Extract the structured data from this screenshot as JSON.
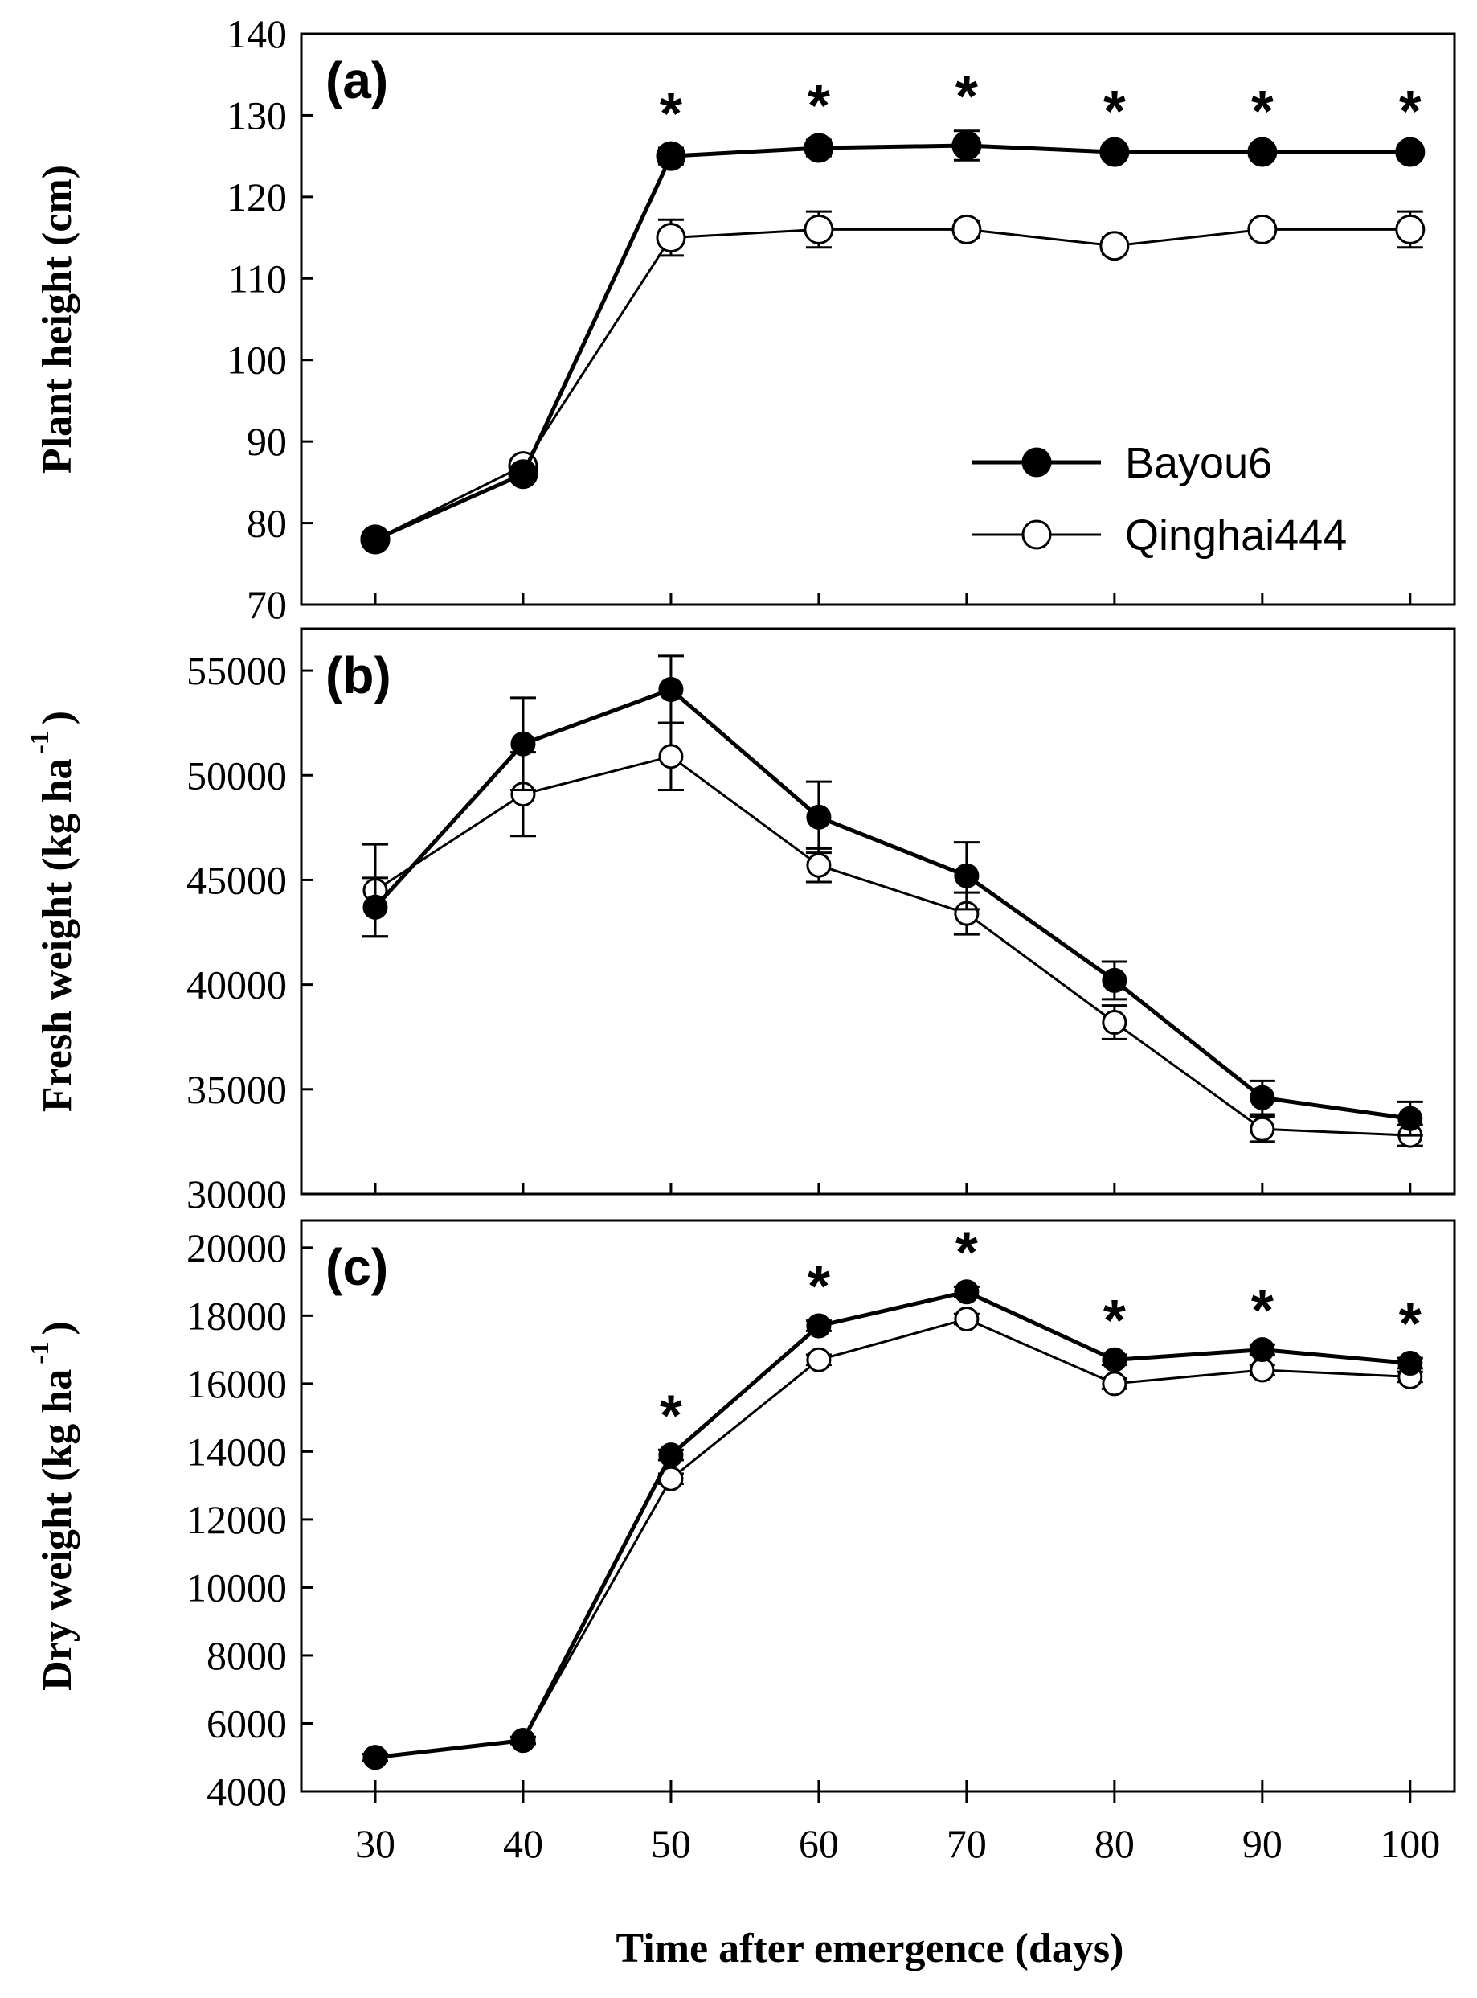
{
  "chart_data": [
    {
      "type": "line",
      "panel_label": "(a)",
      "ylabel": "Plant height (cm)",
      "ylim": [
        70,
        140
      ],
      "yticks": [
        70,
        80,
        90,
        100,
        110,
        120,
        130,
        140
      ],
      "x": [
        30,
        40,
        50,
        60,
        70,
        80,
        90,
        100
      ],
      "series": [
        {
          "name": "Bayou6",
          "marker": "filled",
          "values": [
            78,
            86,
            125,
            126,
            126.3,
            125.5,
            125.5,
            125.5
          ],
          "errors": [
            0.8,
            0.8,
            1.0,
            1.0,
            1.8,
            0.8,
            0.8,
            0.8
          ]
        },
        {
          "name": "Qinghai444",
          "marker": "open",
          "values": [
            78,
            87,
            115,
            116,
            116,
            114,
            116,
            116
          ],
          "errors": [
            0.8,
            0.8,
            2.2,
            2.2,
            1.0,
            1.0,
            1.0,
            2.2
          ]
        }
      ],
      "significance": [
        "",
        "",
        "*",
        "*",
        "*",
        "*",
        "*",
        "*"
      ],
      "legend": {
        "position": "right",
        "entries": [
          "Bayou6",
          "Qinghai444"
        ]
      }
    },
    {
      "type": "line",
      "panel_label": "(b)",
      "ylabel": "Fresh weight (kg ha",
      "ylabel_sup": "-1",
      "ylabel_close": ")",
      "ylim": [
        30000,
        57000
      ],
      "yticks": [
        30000,
        35000,
        40000,
        45000,
        50000,
        55000
      ],
      "x": [
        30,
        40,
        50,
        60,
        70,
        80,
        90,
        100
      ],
      "series": [
        {
          "name": "Bayou6",
          "marker": "filled",
          "values": [
            43700,
            51500,
            54100,
            48000,
            45200,
            40200,
            34600,
            33600
          ],
          "errors": [
            1400,
            2200,
            1600,
            1700,
            1600,
            900,
            800,
            800
          ]
        },
        {
          "name": "Qinghai444",
          "marker": "open",
          "values": [
            44500,
            49100,
            50900,
            45700,
            43400,
            38200,
            33100,
            32800
          ],
          "errors": [
            2200,
            2000,
            1600,
            800,
            1000,
            800,
            600,
            500
          ]
        }
      ],
      "significance": [
        "",
        "",
        "",
        "",
        "",
        "",
        "",
        ""
      ]
    },
    {
      "type": "line",
      "panel_label": "(c)",
      "ylabel": "Dry weight (kg ha",
      "ylabel_sup": "-1",
      "ylabel_close": ")",
      "ylim": [
        4000,
        20800
      ],
      "yticks": [
        4000,
        6000,
        8000,
        10000,
        12000,
        14000,
        16000,
        18000,
        20000
      ],
      "x": [
        30,
        40,
        50,
        60,
        70,
        80,
        90,
        100
      ],
      "series": [
        {
          "name": "Bayou6",
          "marker": "filled",
          "values": [
            5000,
            5500,
            13900,
            17700,
            18700,
            16700,
            17000,
            16600
          ],
          "errors": [
            100,
            100,
            150,
            150,
            150,
            150,
            150,
            150
          ]
        },
        {
          "name": "Qinghai444",
          "marker": "open",
          "values": [
            5000,
            5500,
            13200,
            16700,
            17900,
            16000,
            16400,
            16200
          ],
          "errors": [
            100,
            100,
            150,
            150,
            150,
            150,
            150,
            150
          ]
        }
      ],
      "significance": [
        "",
        "",
        "*",
        "*",
        "*",
        "*",
        "*",
        "*"
      ]
    }
  ],
  "x_axis": {
    "xlabel": "Time after emergence (days)",
    "xlim": [
      25,
      103
    ],
    "tick_labels": [
      "30",
      "40",
      "50",
      "60",
      "70",
      "80",
      "90",
      "100"
    ]
  }
}
